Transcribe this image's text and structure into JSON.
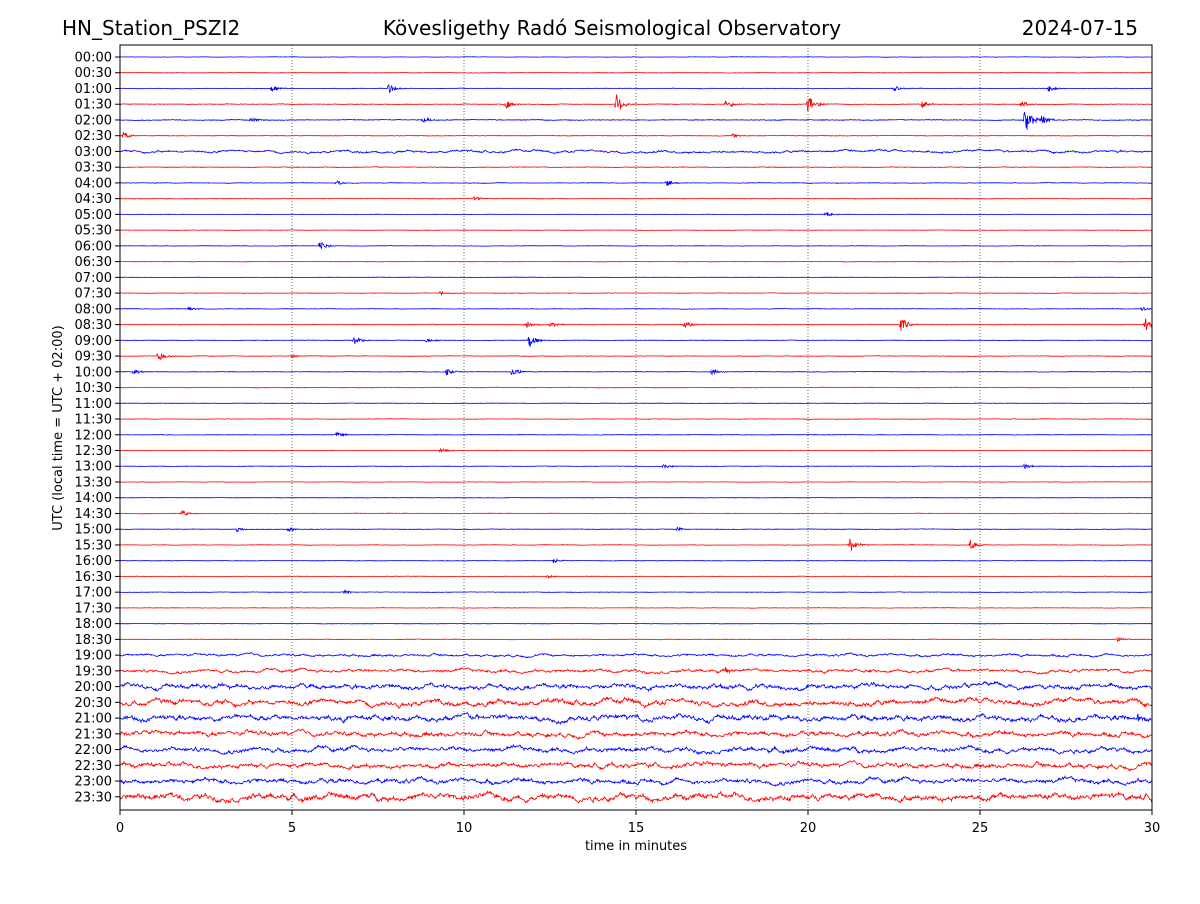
{
  "chart_data": {
    "type": "line",
    "title_left": "HN_Station_PSZI2",
    "title": "Kövesligethy Radó Seismological Observatory",
    "title_right": "2024-07-15",
    "xlabel": "time in minutes",
    "ylabel": "UTC (local time = UTC + 02:00)",
    "xlim": [
      0,
      30
    ],
    "xticks": [
      "0",
      "5",
      "10",
      "15",
      "20",
      "25",
      "30"
    ],
    "grid": "vertical dotted at every 5 minutes",
    "colors": [
      "#0000ff",
      "#ff0000"
    ],
    "rows": [
      "00:00",
      "00:30",
      "01:00",
      "01:30",
      "02:00",
      "02:30",
      "03:00",
      "03:30",
      "04:00",
      "04:30",
      "05:00",
      "05:30",
      "06:00",
      "06:30",
      "07:00",
      "07:30",
      "08:00",
      "08:30",
      "09:00",
      "09:30",
      "10:00",
      "10:30",
      "11:00",
      "11:30",
      "12:00",
      "12:30",
      "13:00",
      "13:30",
      "14:00",
      "14:30",
      "15:00",
      "15:30",
      "16:00",
      "16:30",
      "17:00",
      "17:30",
      "18:00",
      "18:30",
      "19:00",
      "19:30",
      "20:00",
      "20:30",
      "21:00",
      "21:30",
      "22:00",
      "22:30",
      "23:00",
      "23:30"
    ],
    "noise_level": [
      0.06,
      0.06,
      0.08,
      0.1,
      0.12,
      0.08,
      0.15,
      0.1,
      0.08,
      0.07,
      0.06,
      0.06,
      0.07,
      0.06,
      0.06,
      0.07,
      0.08,
      0.08,
      0.08,
      0.08,
      0.08,
      0.07,
      0.07,
      0.07,
      0.07,
      0.07,
      0.07,
      0.06,
      0.06,
      0.07,
      0.08,
      0.07,
      0.07,
      0.07,
      0.07,
      0.06,
      0.06,
      0.08,
      0.15,
      0.2,
      0.3,
      0.35,
      0.35,
      0.3,
      0.3,
      0.3,
      0.3,
      0.4
    ],
    "events": {
      "01:00": [
        [
          4.4,
          0.5
        ],
        [
          7.8,
          0.6
        ],
        [
          22.5,
          0.4
        ],
        [
          27,
          0.4
        ]
      ],
      "01:30": [
        [
          11.2,
          0.6
        ],
        [
          14.4,
          1.6
        ],
        [
          17.6,
          0.6
        ],
        [
          20,
          1.2
        ],
        [
          23.3,
          0.5
        ],
        [
          26.2,
          0.4
        ]
      ],
      "02:00": [
        [
          3.8,
          0.3
        ],
        [
          8.8,
          0.4
        ],
        [
          26.3,
          2.0
        ],
        [
          26.8,
          0.6
        ]
      ],
      "02:30": [
        [
          0.1,
          0.5
        ],
        [
          17.8,
          0.3
        ]
      ],
      "04:00": [
        [
          6.3,
          0.3
        ],
        [
          15.9,
          0.4
        ]
      ],
      "04:30": [
        [
          10.3,
          0.3
        ]
      ],
      "05:00": [
        [
          20.5,
          0.4
        ]
      ],
      "06:00": [
        [
          5.8,
          0.6
        ]
      ],
      "07:30": [
        [
          9.3,
          0.3
        ]
      ],
      "08:00": [
        [
          2,
          0.3
        ],
        [
          29.7,
          0.3
        ]
      ],
      "08:30": [
        [
          11.8,
          0.5
        ],
        [
          12.5,
          0.4
        ],
        [
          16.4,
          0.5
        ],
        [
          22.7,
          1.1
        ],
        [
          29.8,
          0.9
        ]
      ],
      "09:00": [
        [
          6.8,
          0.7
        ],
        [
          8.9,
          0.3
        ],
        [
          11.9,
          1.0
        ]
      ],
      "09:30": [
        [
          1.1,
          0.8
        ],
        [
          5,
          0.3
        ]
      ],
      "10:00": [
        [
          0.4,
          0.4
        ],
        [
          9.5,
          0.4
        ],
        [
          11.4,
          0.6
        ],
        [
          17.2,
          0.4
        ]
      ],
      "12:00": [
        [
          6.3,
          0.4
        ]
      ],
      "12:30": [
        [
          9.3,
          0.3
        ]
      ],
      "13:00": [
        [
          26.3,
          0.4
        ],
        [
          15.8,
          0.3
        ]
      ],
      "14:30": [
        [
          1.8,
          0.4
        ]
      ],
      "15:00": [
        [
          3.4,
          0.3
        ],
        [
          4.9,
          0.3
        ],
        [
          16.2,
          0.3
        ]
      ],
      "15:30": [
        [
          21.2,
          1.1
        ],
        [
          24.7,
          0.6
        ]
      ],
      "16:00": [
        [
          12.6,
          0.3
        ]
      ],
      "16:30": [
        [
          12.4,
          0.3
        ]
      ],
      "17:00": [
        [
          6.5,
          0.3
        ]
      ],
      "18:30": [
        [
          29,
          0.3
        ]
      ],
      "19:30": [
        [
          17.6,
          0.4
        ]
      ],
      "21:00": [
        [
          29.6,
          0.5
        ]
      ]
    }
  }
}
